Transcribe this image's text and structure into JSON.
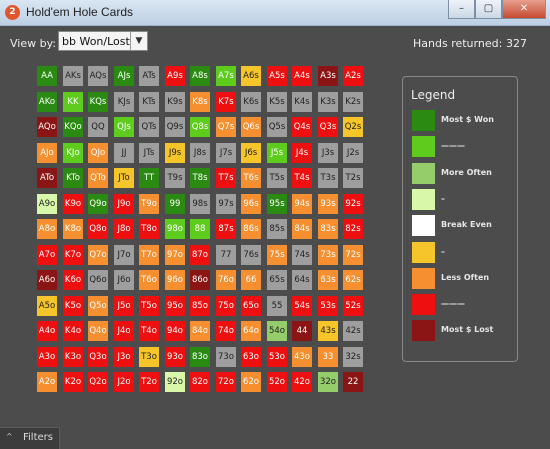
{
  "window": {
    "title": "Hold'em Hole Cards",
    "app_icon_text": "2",
    "buttons": {
      "minimize": "–",
      "maximize": "▢",
      "close": "✕"
    }
  },
  "toolbar": {
    "view_by_label": "View by:",
    "view_by_value": "bb Won/Lost",
    "hands_label": "Hands returned:",
    "hands_count": "327"
  },
  "palette": {
    "dg": "#2a8a12",
    "lg": "#5dcc1d",
    "pg": "#95cd6a",
    "vg": "#d8f7a8",
    "wh": "#ffffff",
    "ye": "#f6c52a",
    "or": "#f58f30",
    "rd": "#ee1010",
    "dr": "#8b1414",
    "gy": "#9e9e9e"
  },
  "grid": {
    "cells": [
      [
        "AA",
        "dg"
      ],
      [
        "AKs",
        "gy"
      ],
      [
        "AQs",
        "gy"
      ],
      [
        "AJs",
        "dg"
      ],
      [
        "ATs",
        "gy"
      ],
      [
        "A9s",
        "rd"
      ],
      [
        "A8s",
        "dg"
      ],
      [
        "A7s",
        "lg"
      ],
      [
        "A6s",
        "ye"
      ],
      [
        "A5s",
        "rd"
      ],
      [
        "A4s",
        "rd"
      ],
      [
        "A3s",
        "dr"
      ],
      [
        "A2s",
        "rd"
      ],
      [
        "AKo",
        "dg"
      ],
      [
        "KK",
        "lg"
      ],
      [
        "KQs",
        "dg"
      ],
      [
        "KJs",
        "gy"
      ],
      [
        "KTs",
        "gy"
      ],
      [
        "K9s",
        "gy"
      ],
      [
        "K8s",
        "or"
      ],
      [
        "K7s",
        "rd"
      ],
      [
        "K6s",
        "gy"
      ],
      [
        "K5s",
        "gy"
      ],
      [
        "K4s",
        "gy"
      ],
      [
        "K3s",
        "gy"
      ],
      [
        "K2s",
        "gy"
      ],
      [
        "AQo",
        "dr"
      ],
      [
        "KQo",
        "dg"
      ],
      [
        "QQ",
        "gy"
      ],
      [
        "QJs",
        "lg"
      ],
      [
        "QTs",
        "gy"
      ],
      [
        "Q9s",
        "gy"
      ],
      [
        "Q8s",
        "lg"
      ],
      [
        "Q7s",
        "or"
      ],
      [
        "Q6s",
        "or"
      ],
      [
        "Q5s",
        "gy"
      ],
      [
        "Q4s",
        "rd"
      ],
      [
        "Q3s",
        "rd"
      ],
      [
        "Q2s",
        "ye"
      ],
      [
        "AJo",
        "or"
      ],
      [
        "KJo",
        "lg"
      ],
      [
        "QJo",
        "or"
      ],
      [
        "JJ",
        "gy"
      ],
      [
        "JTs",
        "gy"
      ],
      [
        "J9s",
        "ye"
      ],
      [
        "J8s",
        "gy"
      ],
      [
        "J7s",
        "gy"
      ],
      [
        "J6s",
        "ye"
      ],
      [
        "J5s",
        "lg"
      ],
      [
        "J4s",
        "rd"
      ],
      [
        "J3s",
        "gy"
      ],
      [
        "J2s",
        "gy"
      ],
      [
        "ATo",
        "dr"
      ],
      [
        "KTo",
        "dg"
      ],
      [
        "QTo",
        "or"
      ],
      [
        "JTo",
        "ye"
      ],
      [
        "TT",
        "dg"
      ],
      [
        "T9s",
        "gy"
      ],
      [
        "T8s",
        "dg"
      ],
      [
        "T7s",
        "rd"
      ],
      [
        "T6s",
        "or"
      ],
      [
        "T5s",
        "gy"
      ],
      [
        "T4s",
        "rd"
      ],
      [
        "T3s",
        "gy"
      ],
      [
        "T2s",
        "gy"
      ],
      [
        "A9o",
        "vg"
      ],
      [
        "K9o",
        "rd"
      ],
      [
        "Q9o",
        "dg"
      ],
      [
        "J9o",
        "rd"
      ],
      [
        "T9o",
        "or"
      ],
      [
        "99",
        "dg"
      ],
      [
        "98s",
        "gy"
      ],
      [
        "97s",
        "gy"
      ],
      [
        "96s",
        "or"
      ],
      [
        "95s",
        "dg"
      ],
      [
        "94s",
        "or"
      ],
      [
        "93s",
        "or"
      ],
      [
        "92s",
        "rd"
      ],
      [
        "A8o",
        "or"
      ],
      [
        "K8o",
        "or"
      ],
      [
        "Q8o",
        "rd"
      ],
      [
        "J8o",
        "rd"
      ],
      [
        "T8o",
        "rd"
      ],
      [
        "98o",
        "lg"
      ],
      [
        "88",
        "lg"
      ],
      [
        "87s",
        "rd"
      ],
      [
        "86s",
        "or"
      ],
      [
        "85s",
        "gy"
      ],
      [
        "84s",
        "or"
      ],
      [
        "83s",
        "or"
      ],
      [
        "82s",
        "rd"
      ],
      [
        "A7o",
        "rd"
      ],
      [
        "K7o",
        "rd"
      ],
      [
        "Q7o",
        "or"
      ],
      [
        "J7o",
        "gy"
      ],
      [
        "T7o",
        "or"
      ],
      [
        "97o",
        "or"
      ],
      [
        "87o",
        "rd"
      ],
      [
        "77",
        "gy"
      ],
      [
        "76s",
        "gy"
      ],
      [
        "75s",
        "or"
      ],
      [
        "74s",
        "gy"
      ],
      [
        "73s",
        "or"
      ],
      [
        "72s",
        "or"
      ],
      [
        "A6o",
        "dr"
      ],
      [
        "K6o",
        "rd"
      ],
      [
        "Q6o",
        "gy"
      ],
      [
        "J6o",
        "gy"
      ],
      [
        "T6o",
        "or"
      ],
      [
        "96o",
        "or"
      ],
      [
        "86o",
        "dr"
      ],
      [
        "76o",
        "or"
      ],
      [
        "66",
        "or"
      ],
      [
        "65s",
        "gy"
      ],
      [
        "64s",
        "gy"
      ],
      [
        "63s",
        "or"
      ],
      [
        "62s",
        "or"
      ],
      [
        "A5o",
        "ye"
      ],
      [
        "K5o",
        "rd"
      ],
      [
        "Q5o",
        "or"
      ],
      [
        "J5o",
        "rd"
      ],
      [
        "T5o",
        "rd"
      ],
      [
        "95o",
        "rd"
      ],
      [
        "85o",
        "rd"
      ],
      [
        "75o",
        "rd"
      ],
      [
        "65o",
        "rd"
      ],
      [
        "55",
        "gy"
      ],
      [
        "54s",
        "rd"
      ],
      [
        "53s",
        "rd"
      ],
      [
        "52s",
        "rd"
      ],
      [
        "A4o",
        "rd"
      ],
      [
        "K4o",
        "rd"
      ],
      [
        "Q4o",
        "or"
      ],
      [
        "J4o",
        "rd"
      ],
      [
        "T4o",
        "rd"
      ],
      [
        "94o",
        "rd"
      ],
      [
        "84o",
        "or"
      ],
      [
        "74o",
        "rd"
      ],
      [
        "64o",
        "or"
      ],
      [
        "54o",
        "pg"
      ],
      [
        "44",
        "dr"
      ],
      [
        "43s",
        "ye"
      ],
      [
        "42s",
        "gy"
      ],
      [
        "A3o",
        "rd"
      ],
      [
        "K3o",
        "rd"
      ],
      [
        "Q3o",
        "rd"
      ],
      [
        "J3o",
        "rd"
      ],
      [
        "T3o",
        "ye"
      ],
      [
        "93o",
        "rd"
      ],
      [
        "83o",
        "dg"
      ],
      [
        "73o",
        "gy"
      ],
      [
        "63o",
        "rd"
      ],
      [
        "53o",
        "rd"
      ],
      [
        "43o",
        "or"
      ],
      [
        "33",
        "or"
      ],
      [
        "32s",
        "gy"
      ],
      [
        "A2o",
        "or"
      ],
      [
        "K2o",
        "rd"
      ],
      [
        "Q2o",
        "rd"
      ],
      [
        "J2o",
        "rd"
      ],
      [
        "T2o",
        "rd"
      ],
      [
        "92o",
        "vg"
      ],
      [
        "82o",
        "rd"
      ],
      [
        "72o",
        "rd"
      ],
      [
        "62o",
        "or"
      ],
      [
        "52o",
        "rd"
      ],
      [
        "42o",
        "rd"
      ],
      [
        "32o",
        "pg"
      ],
      [
        "22",
        "dr"
      ]
    ]
  },
  "legend": {
    "title": "Legend",
    "items": [
      {
        "label": "Most $ Won",
        "color": "#2a8a12"
      },
      {
        "label": "———",
        "color": "#5dcc1d"
      },
      {
        "label": "More Often",
        "color": "#95cd6a"
      },
      {
        "label": "–",
        "color": "#d8f7a8"
      },
      {
        "label": "Break Even",
        "color": "#ffffff"
      },
      {
        "label": "–",
        "color": "#f6c52a"
      },
      {
        "label": "Less Often",
        "color": "#f58f30"
      },
      {
        "label": "———",
        "color": "#ee1010"
      },
      {
        "label": "Most $ Lost",
        "color": "#8b1414"
      }
    ]
  },
  "footer": {
    "filters_label": "Filters",
    "caret": "^"
  }
}
